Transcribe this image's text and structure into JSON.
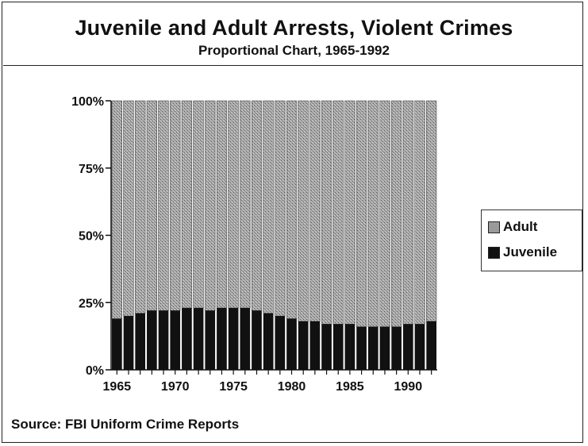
{
  "header": {
    "title": "Juvenile and Adult Arrests, Violent Crimes",
    "subtitle": "Proportional Chart, 1965-1992"
  },
  "legend": {
    "adult_label": "Adult",
    "juvenile_label": "Juvenile"
  },
  "source": "Source: FBI Uniform Crime Reports",
  "colors": {
    "adult": "#9a9a9a",
    "juvenile": "#111111",
    "axis": "#111111"
  },
  "chart_data": {
    "type": "bar",
    "stacked": true,
    "title": "Juvenile and Adult Arrests, Violent Crimes",
    "subtitle": "Proportional Chart, 1965-1992",
    "xlabel": "",
    "ylabel": "",
    "ylim": [
      0,
      100
    ],
    "y_ticks": [
      "0%",
      "25%",
      "50%",
      "75%",
      "100%"
    ],
    "x_ticks": [
      "1965",
      "1970",
      "1975",
      "1980",
      "1985",
      "1990"
    ],
    "categories": [
      "1965",
      "1966",
      "1967",
      "1968",
      "1969",
      "1970",
      "1971",
      "1972",
      "1973",
      "1974",
      "1975",
      "1976",
      "1977",
      "1978",
      "1979",
      "1980",
      "1981",
      "1982",
      "1983",
      "1984",
      "1985",
      "1986",
      "1987",
      "1988",
      "1989",
      "1990",
      "1991",
      "1992"
    ],
    "series": [
      {
        "name": "Juvenile",
        "values": [
          19,
          20,
          21,
          22,
          22,
          22,
          23,
          23,
          22,
          23,
          23,
          23,
          22,
          21,
          20,
          19,
          18,
          18,
          17,
          17,
          17,
          16,
          16,
          16,
          16,
          17,
          17,
          18
        ]
      },
      {
        "name": "Adult",
        "values": [
          81,
          80,
          79,
          78,
          78,
          78,
          77,
          77,
          78,
          77,
          77,
          77,
          78,
          79,
          80,
          81,
          82,
          82,
          83,
          83,
          83,
          84,
          84,
          84,
          84,
          83,
          83,
          82
        ]
      }
    ],
    "legend_position": "right",
    "grid": false
  }
}
